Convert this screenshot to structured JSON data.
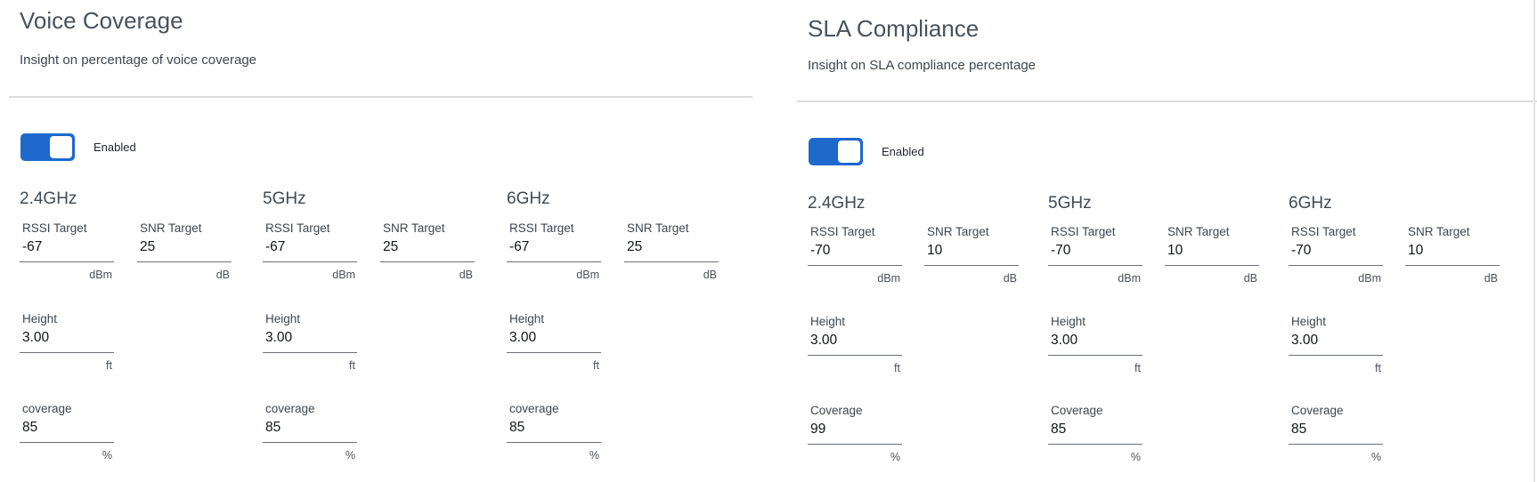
{
  "voice_coverage": {
    "title": "Voice Coverage",
    "description": "Insight on percentage of voice coverage",
    "toggle": {
      "state": "on",
      "label": "Enabled"
    },
    "bands": [
      {
        "name": "2.4GHz",
        "rssi": {
          "label": "RSSI Target",
          "value": "-67",
          "unit": "dBm"
        },
        "snr": {
          "label": "SNR Target",
          "value": "25",
          "unit": "dB"
        },
        "height": {
          "label": "Height",
          "value": "3.00",
          "unit": "ft"
        },
        "coverage": {
          "label": "coverage",
          "value": "85",
          "unit": "%"
        }
      },
      {
        "name": "5GHz",
        "rssi": {
          "label": "RSSI Target",
          "value": "-67",
          "unit": "dBm"
        },
        "snr": {
          "label": "SNR Target",
          "value": "25",
          "unit": "dB"
        },
        "height": {
          "label": "Height",
          "value": "3.00",
          "unit": "ft"
        },
        "coverage": {
          "label": "coverage",
          "value": "85",
          "unit": "%"
        }
      },
      {
        "name": "6GHz",
        "rssi": {
          "label": "RSSI Target",
          "value": "-67",
          "unit": "dBm"
        },
        "snr": {
          "label": "SNR Target",
          "value": "25",
          "unit": "dB"
        },
        "height": {
          "label": "Height",
          "value": "3.00",
          "unit": "ft"
        },
        "coverage": {
          "label": "coverage",
          "value": "85",
          "unit": "%"
        }
      }
    ]
  },
  "sla_compliance": {
    "title": "SLA Compliance",
    "description": "Insight on SLA compliance percentage",
    "toggle": {
      "state": "on",
      "label": "Enabled"
    },
    "bands": [
      {
        "name": "2.4GHz",
        "rssi": {
          "label": "RSSI Target",
          "value": "-70",
          "unit": "dBm"
        },
        "snr": {
          "label": "SNR Target",
          "value": "10",
          "unit": "dB"
        },
        "height": {
          "label": "Height",
          "value": "3.00",
          "unit": "ft"
        },
        "coverage": {
          "label": "Coverage",
          "value": "99",
          "unit": "%"
        }
      },
      {
        "name": "5GHz",
        "rssi": {
          "label": "RSSI Target",
          "value": "-70",
          "unit": "dBm"
        },
        "snr": {
          "label": "SNR Target",
          "value": "10",
          "unit": "dB"
        },
        "height": {
          "label": "Height",
          "value": "3.00",
          "unit": "ft"
        },
        "coverage": {
          "label": "Coverage",
          "value": "85",
          "unit": "%"
        }
      },
      {
        "name": "6GHz",
        "rssi": {
          "label": "RSSI Target",
          "value": "-70",
          "unit": "dBm"
        },
        "snr": {
          "label": "SNR Target",
          "value": "10",
          "unit": "dB"
        },
        "height": {
          "label": "Height",
          "value": "3.00",
          "unit": "ft"
        },
        "coverage": {
          "label": "Coverage",
          "value": "85",
          "unit": "%"
        }
      }
    ],
    "accent_color": "#1d69cc"
  }
}
